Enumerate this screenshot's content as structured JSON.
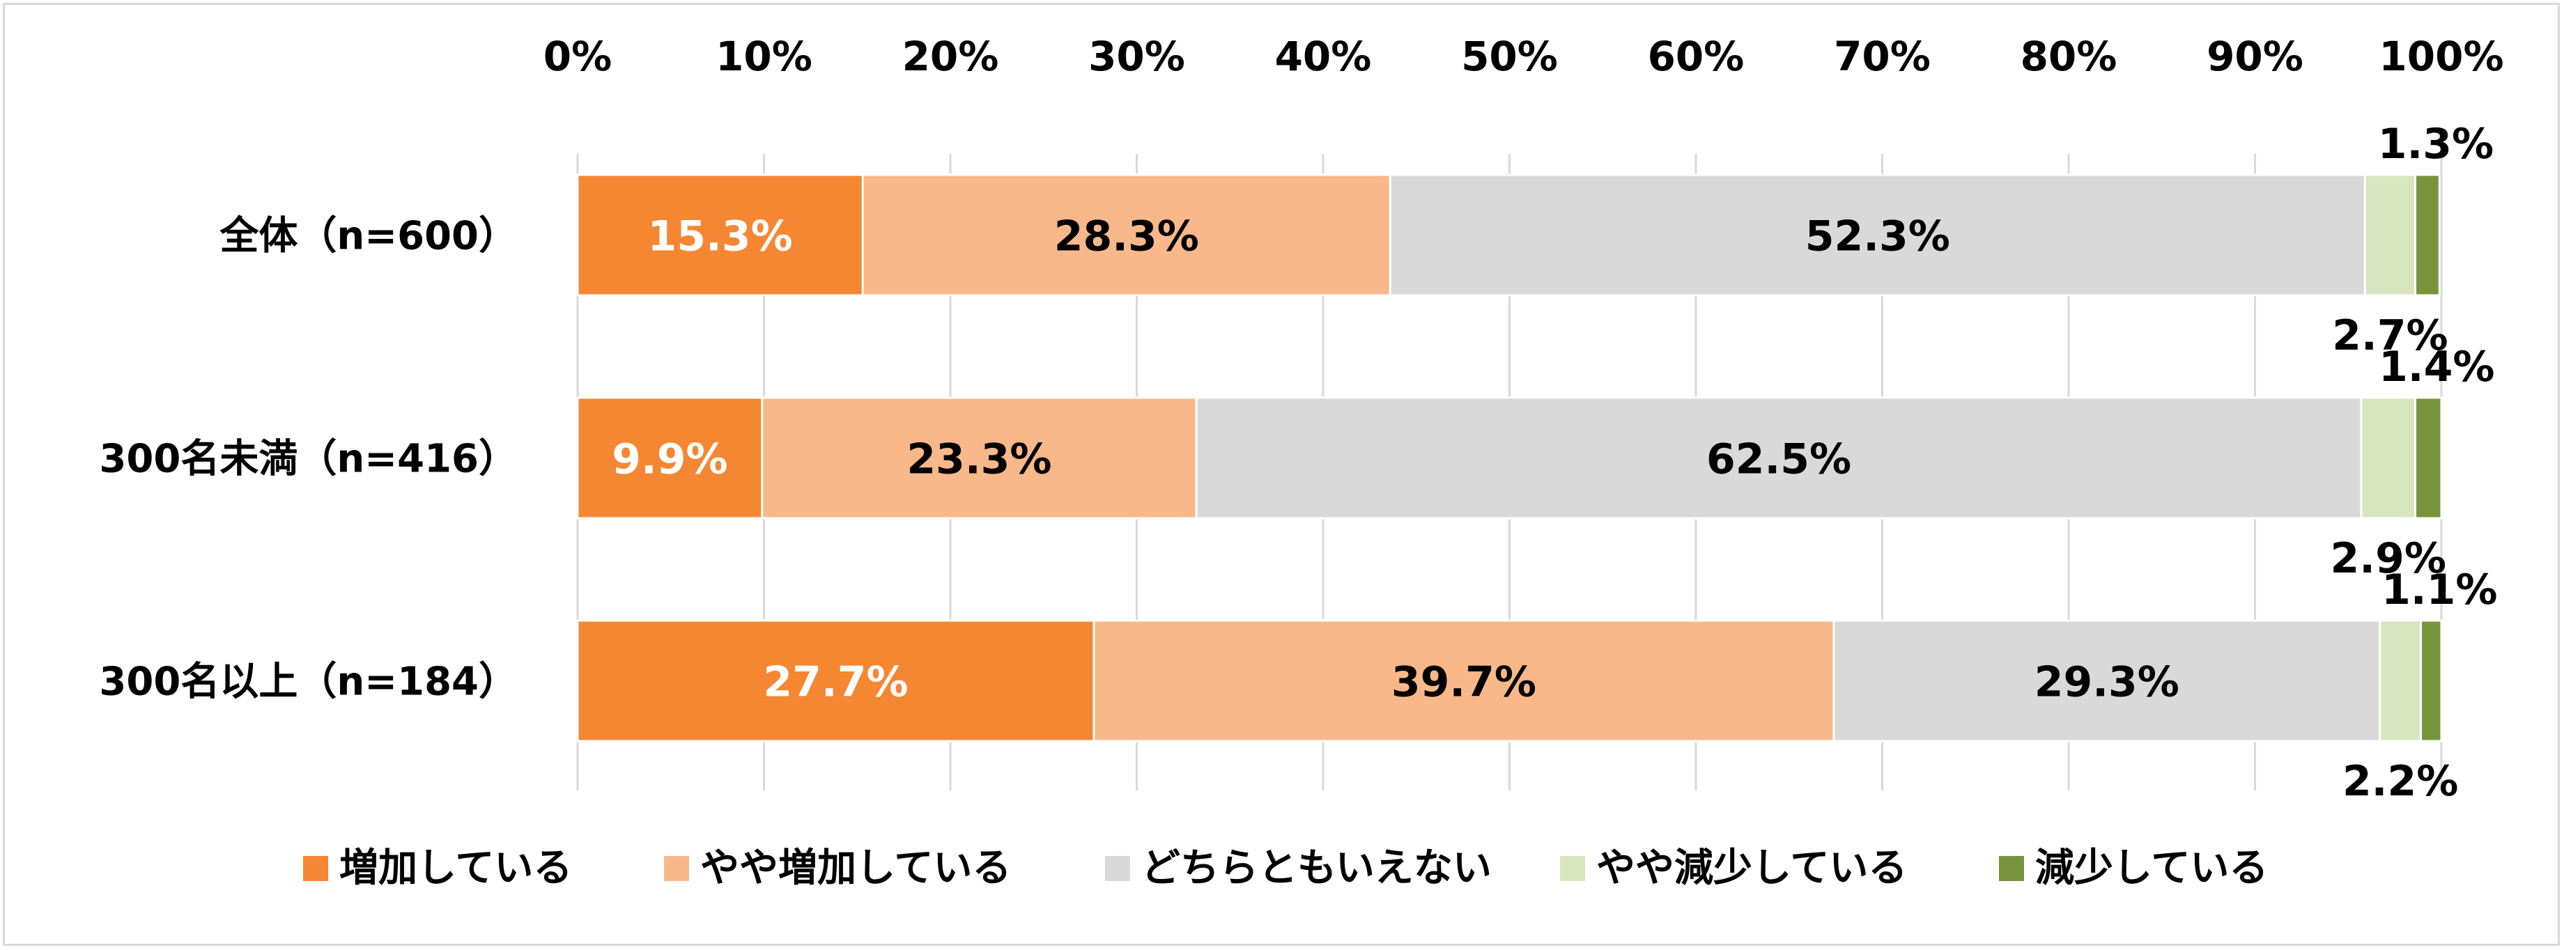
{
  "chart_data": {
    "type": "bar",
    "orientation": "horizontal",
    "stacked": true,
    "xlim": [
      0,
      100
    ],
    "x_ticks": [
      "0%",
      "10%",
      "20%",
      "30%",
      "40%",
      "50%",
      "60%",
      "70%",
      "80%",
      "90%",
      "100%"
    ],
    "categories": [
      "全体（n=600）",
      "300名未満（n=416）",
      "300名以上（n=184）"
    ],
    "series": [
      {
        "name": "増加している",
        "color": "#f58733",
        "label_color": "#ffffff",
        "values": [
          15.3,
          9.9,
          27.7
        ],
        "labels": [
          "15.3%",
          "9.9%",
          "27.7%"
        ]
      },
      {
        "name": "やや増加している",
        "color": "#f9b88a",
        "label_color": "#000000",
        "values": [
          28.3,
          23.3,
          39.7
        ],
        "labels": [
          "28.3%",
          "23.3%",
          "39.7%"
        ]
      },
      {
        "name": "どちらともいえない",
        "color": "#d9d9d9",
        "label_color": "#000000",
        "values": [
          52.3,
          62.5,
          29.3
        ],
        "labels": [
          "52.3%",
          "62.5%",
          "29.3%"
        ]
      },
      {
        "name": "やや減少している",
        "color": "#d8e6bf",
        "label_color": "#000000",
        "values": [
          2.7,
          2.9,
          2.2
        ],
        "labels": [
          "2.7%",
          "2.9%",
          "2.2%"
        ]
      },
      {
        "name": "減少している",
        "color": "#77933c",
        "label_color": "#000000",
        "values": [
          1.3,
          1.4,
          1.1
        ],
        "labels": [
          "1.3%",
          "1.4%",
          "1.1%"
        ]
      }
    ],
    "grid": "vertical",
    "legend_position": "bottom"
  }
}
